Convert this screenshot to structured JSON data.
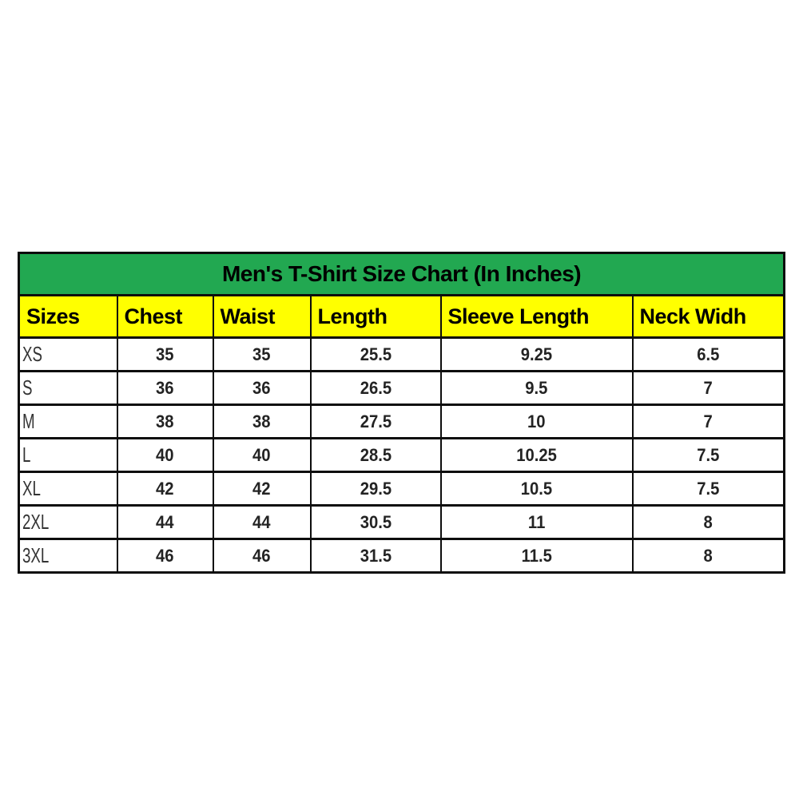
{
  "title": "Men's T-Shirt Size Chart (In Inches)",
  "colors": {
    "title_bg": "#22a851",
    "header_bg": "#ffff00",
    "border": "#0d0d0d",
    "background": "#ffffff"
  },
  "table": {
    "columns": [
      "Sizes",
      "Chest",
      "Waist",
      "Length",
      "Sleeve Length",
      "Neck Widh"
    ],
    "rows": [
      [
        "XS",
        "35",
        "35",
        "25.5",
        "9.25",
        "6.5"
      ],
      [
        "S",
        "36",
        "36",
        "26.5",
        "9.5",
        "7"
      ],
      [
        "M",
        "38",
        "38",
        "27.5",
        "10",
        "7"
      ],
      [
        "L",
        "40",
        "40",
        "28.5",
        "10.25",
        "7.5"
      ],
      [
        "XL",
        "42",
        "42",
        "29.5",
        "10.5",
        "7.5"
      ],
      [
        "2XL",
        "44",
        "44",
        "30.5",
        "11",
        "8"
      ],
      [
        "3XL",
        "46",
        "46",
        "31.5",
        "11.5",
        "8"
      ]
    ]
  },
  "chart_data": {
    "type": "table",
    "title": "Men's T-Shirt Size Chart (In Inches)",
    "columns": [
      "Sizes",
      "Chest",
      "Waist",
      "Length",
      "Sleeve Length",
      "Neck Widh"
    ],
    "rows": [
      {
        "size": "XS",
        "chest": 35,
        "waist": 35,
        "length": 25.5,
        "sleeve_length": 9.25,
        "neck_width": 6.5
      },
      {
        "size": "S",
        "chest": 36,
        "waist": 36,
        "length": 26.5,
        "sleeve_length": 9.5,
        "neck_width": 7
      },
      {
        "size": "M",
        "chest": 38,
        "waist": 38,
        "length": 27.5,
        "sleeve_length": 10,
        "neck_width": 7
      },
      {
        "size": "L",
        "chest": 40,
        "waist": 40,
        "length": 28.5,
        "sleeve_length": 10.25,
        "neck_width": 7.5
      },
      {
        "size": "XL",
        "chest": 42,
        "waist": 42,
        "length": 29.5,
        "sleeve_length": 10.5,
        "neck_width": 7.5
      },
      {
        "size": "2XL",
        "chest": 44,
        "waist": 44,
        "length": 30.5,
        "sleeve_length": 11,
        "neck_width": 8
      },
      {
        "size": "3XL",
        "chest": 46,
        "waist": 46,
        "length": 31.5,
        "sleeve_length": 11.5,
        "neck_width": 8
      }
    ],
    "units": "inches"
  }
}
